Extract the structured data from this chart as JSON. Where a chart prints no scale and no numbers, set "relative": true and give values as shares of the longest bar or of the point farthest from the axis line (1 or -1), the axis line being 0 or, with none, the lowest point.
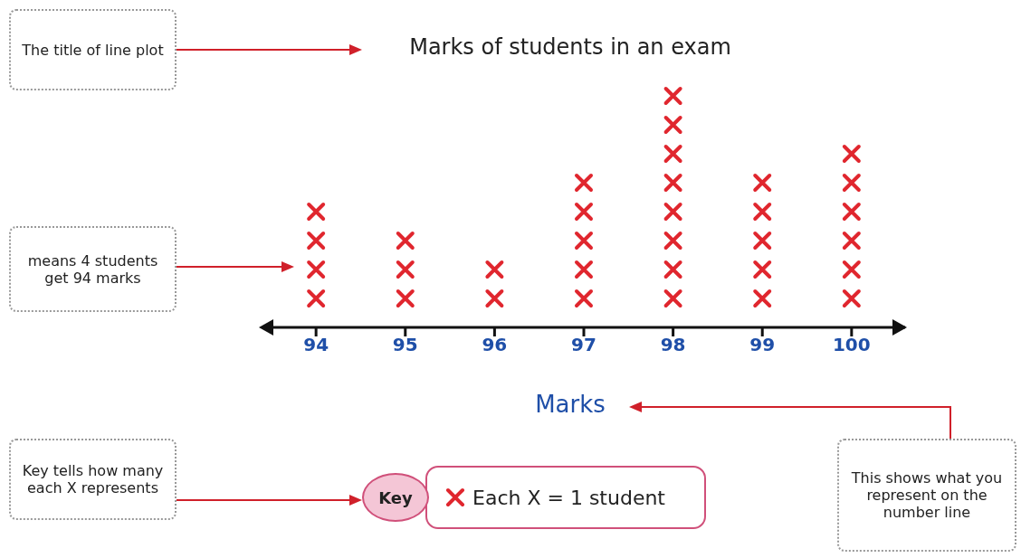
{
  "chart_data": {
    "type": "scatter",
    "title": "Marks of students in an exam",
    "xlabel": "Marks",
    "x": [
      94,
      94,
      94,
      94,
      95,
      95,
      95,
      96,
      96,
      97,
      97,
      97,
      97,
      97,
      98,
      98,
      98,
      98,
      98,
      98,
      98,
      98,
      99,
      99,
      99,
      99,
      99,
      100,
      100,
      100,
      100,
      100,
      100
    ],
    "marker": "cross",
    "xlim": [
      93.4,
      100.6
    ],
    "xticks": [
      94,
      95,
      96,
      97,
      98,
      99,
      100
    ],
    "relative": true,
    "tick_labels": "x",
    "legend": "bottom",
    "legend_title": "Key",
    "series": [
      {
        "name": "Each X = 1 student",
        "color": "#e0262e",
        "values": [
          0.125,
          0.25,
          0.375,
          0.5,
          0.125,
          0.25,
          0.375,
          0.125,
          0.25,
          0.125,
          0.25,
          0.375,
          0.5,
          0.625,
          0.125,
          0.25,
          0.375,
          0.5,
          0.625,
          0.75,
          0.875,
          1,
          0.125,
          0.25,
          0.375,
          0.5,
          0.625,
          0.125,
          0.25,
          0.375,
          0.5,
          0.625,
          0.75
        ]
      }
    ],
    "annotations": [
      "The title of line plot",
      "means 4 students get 94 marks",
      "Key tells how many each X represents",
      "This shows what you represent on the number line"
    ]
  }
}
